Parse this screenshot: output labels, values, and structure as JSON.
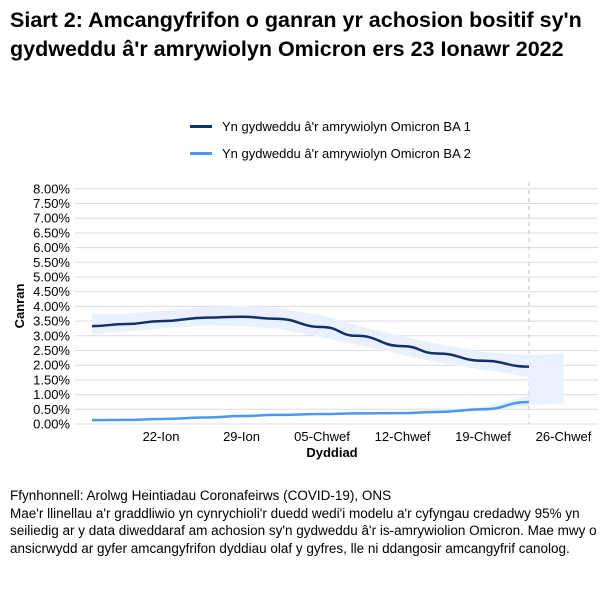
{
  "title": "Siart 2: Amcangyfrifon o ganran yr achosion bositif sy'n gydweddu â'r amrywiolyn Omicron ers 23 Ionawr 2022",
  "source": "Ffynhonnell: Arolwg Heintiadau Coronafeirws (COVID-19), ONS",
  "note": "Mae'r llinellau a'r graddliwio yn cynrychioli'r duedd wedi'i modelu a'r cyfyngau credadwy 95% yn seiliedig ar y data diweddaraf am achosion sy'n gydweddu â'r is-amrywiolion Omicron. Mae mwy o ansicrwydd ar gyfer amcangyfrifon dyddiau olaf y gyfres, lle ni ddangosir amcangyfrif canolog.",
  "chart_data": {
    "type": "line",
    "xlabel": "Dyddiad",
    "ylabel": "Canran",
    "ylim": [
      0,
      8
    ],
    "yticks": [
      "0.00%",
      "0.50%",
      "1.00%",
      "1.50%",
      "2.00%",
      "2.50%",
      "3.00%",
      "3.50%",
      "4.00%",
      "4.50%",
      "5.00%",
      "5.50%",
      "6.00%",
      "6.50%",
      "7.00%",
      "7.50%",
      "8.00%"
    ],
    "xticks": [
      "22-Ion",
      "29-Ion",
      "05-Chwef",
      "12-Chwef",
      "19-Chwef",
      "26-Chwef"
    ],
    "x_days_note_free": true,
    "x": [
      "16-Ion",
      "19-Ion",
      "22-Ion",
      "26-Ion",
      "29-Ion",
      "01-Chwef",
      "05-Chwef",
      "08-Chwef",
      "12-Chwef",
      "15-Chwef",
      "19-Chwef",
      "23-Chwef"
    ],
    "grid": true,
    "legend": "top",
    "dashed_line_at": "23-Chwef",
    "series": [
      {
        "name": "Yn gydweddu â'r amrywiolyn Omicron BA 1",
        "color": "#12316b",
        "band_color": "#e8f1fd",
        "values": [
          3.33,
          3.4,
          3.5,
          3.62,
          3.65,
          3.58,
          3.3,
          3.0,
          2.65,
          2.4,
          2.15,
          1.95
        ],
        "lower": [
          3.03,
          3.15,
          3.25,
          3.35,
          3.33,
          3.25,
          2.95,
          2.7,
          2.35,
          2.1,
          1.85,
          1.6
        ],
        "upper": [
          3.75,
          3.75,
          3.85,
          3.98,
          4.02,
          3.95,
          3.7,
          3.35,
          2.98,
          2.72,
          2.45,
          2.35
        ]
      },
      {
        "name": "Yn gydweddu â'r amrywiolyn Omicron BA 2",
        "color": "#4a98f0",
        "band_color": "#e8f1fd",
        "values": [
          0.13,
          0.14,
          0.17,
          0.22,
          0.27,
          0.31,
          0.34,
          0.36,
          0.37,
          0.41,
          0.5,
          0.75
        ],
        "lower": [
          0.1,
          0.11,
          0.14,
          0.19,
          0.24,
          0.28,
          0.31,
          0.33,
          0.34,
          0.37,
          0.44,
          0.6
        ],
        "upper": [
          0.16,
          0.17,
          0.2,
          0.25,
          0.3,
          0.34,
          0.37,
          0.39,
          0.4,
          0.46,
          0.58,
          0.95
        ]
      }
    ],
    "extension_band": {
      "x": [
        "23-Chwef",
        "26-Chwef"
      ],
      "lower": [
        0.65,
        0.7
      ],
      "upper": [
        2.35,
        2.4
      ]
    }
  }
}
